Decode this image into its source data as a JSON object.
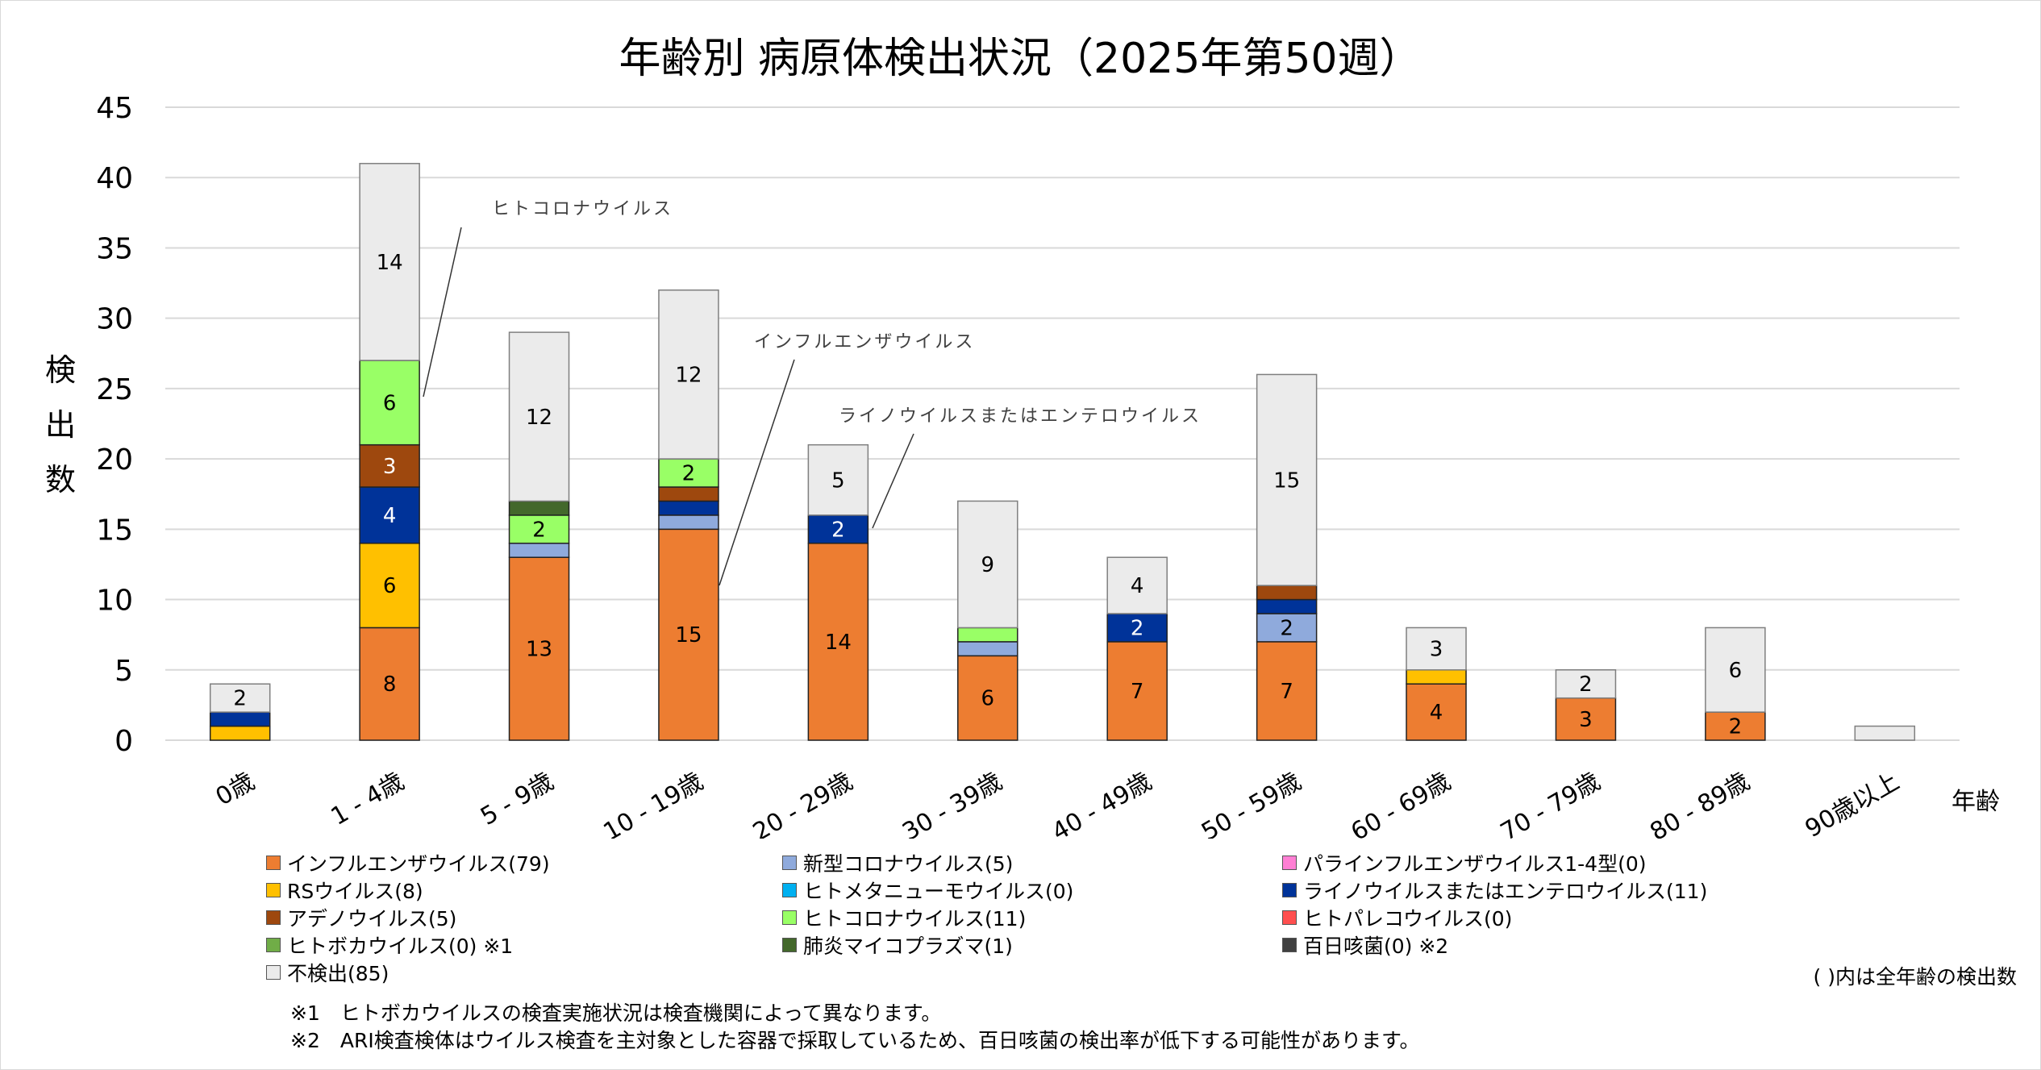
{
  "chart_data": {
    "type": "bar",
    "stacked": true,
    "title": "年齢別 病原体検出状況（2025年第50週）",
    "xlabel": "年齢",
    "ylabel": "検出数",
    "ylim": [
      0,
      45
    ],
    "yticks": [
      0,
      5,
      10,
      15,
      20,
      25,
      30,
      35,
      40,
      45
    ],
    "grid": true,
    "legend_position": "bottom",
    "categories": [
      "0歳",
      "1 - 4歳",
      "5 - 9歳",
      "10 - 19歳",
      "20 - 29歳",
      "30 - 39歳",
      "40 - 49歳",
      "50 - 59歳",
      "60 - 69歳",
      "70 - 79歳",
      "80 - 89歳",
      "90歳以上"
    ],
    "series": [
      {
        "name": "インフルエンザウイルス",
        "total": 79,
        "color": "#ED7D31",
        "values": [
          0,
          8,
          13,
          15,
          14,
          6,
          7,
          7,
          4,
          3,
          2,
          0
        ]
      },
      {
        "name": "RSウイルス",
        "total": 8,
        "color": "#FFC000",
        "values": [
          1,
          6,
          0,
          0,
          0,
          0,
          0,
          0,
          1,
          0,
          0,
          0
        ]
      },
      {
        "name": "新型コロナウイルス",
        "total": 5,
        "color": "#8FAADC",
        "values": [
          0,
          0,
          1,
          1,
          0,
          1,
          0,
          2,
          0,
          0,
          0,
          0
        ]
      },
      {
        "name": "ヒトメタニューモウイルス",
        "total": 0,
        "color": "#00B0F0",
        "values": [
          0,
          0,
          0,
          0,
          0,
          0,
          0,
          0,
          0,
          0,
          0,
          0
        ]
      },
      {
        "name": "パラインフルエンザウイルス1-4型",
        "total": 0,
        "color": "#FF7FD4",
        "values": [
          0,
          0,
          0,
          0,
          0,
          0,
          0,
          0,
          0,
          0,
          0,
          0
        ]
      },
      {
        "name": "ライノウイルスまたはエンテロウイルス",
        "total": 11,
        "color": "#003399",
        "values": [
          1,
          4,
          0,
          1,
          2,
          0,
          2,
          1,
          0,
          0,
          0,
          0
        ]
      },
      {
        "name": "アデノウイルス",
        "total": 5,
        "color": "#9E480E",
        "values": [
          0,
          3,
          0,
          1,
          0,
          0,
          0,
          1,
          0,
          0,
          0,
          0
        ]
      },
      {
        "name": "ヒトコロナウイルス",
        "total": 11,
        "color": "#99FF66",
        "values": [
          0,
          6,
          2,
          2,
          0,
          1,
          0,
          0,
          0,
          0,
          0,
          0
        ]
      },
      {
        "name": "ヒトパレコウイルス",
        "total": 0,
        "color": "#FF4F4F",
        "values": [
          0,
          0,
          0,
          0,
          0,
          0,
          0,
          0,
          0,
          0,
          0,
          0
        ]
      },
      {
        "name": "ヒトボカウイルス",
        "total": 0,
        "color": "#70AD47",
        "note": "※1",
        "values": [
          0,
          0,
          0,
          0,
          0,
          0,
          0,
          0,
          0,
          0,
          0,
          0
        ]
      },
      {
        "name": "肺炎マイコプラズマ",
        "total": 1,
        "color": "#43682B",
        "values": [
          0,
          0,
          1,
          0,
          0,
          0,
          0,
          0,
          0,
          0,
          0,
          0
        ]
      },
      {
        "name": "百日咳菌",
        "total": 0,
        "color": "#404040",
        "note": "※2",
        "values": [
          0,
          0,
          0,
          0,
          0,
          0,
          0,
          0,
          0,
          0,
          0,
          0
        ]
      },
      {
        "name": "不検出",
        "total": 85,
        "color": "#EBEBEB",
        "values": [
          2,
          14,
          12,
          12,
          5,
          9,
          4,
          15,
          3,
          2,
          6,
          1
        ]
      }
    ],
    "data_labels_shown_min": 2,
    "annotations": [
      {
        "text": "ヒトコロナウイルス",
        "points_to": {
          "category": "1 - 4歳",
          "series": "ヒトコロナウイルス"
        }
      },
      {
        "text": "インフルエンザウイルス",
        "points_to": {
          "category": "10 - 19歳",
          "series": "インフルエンザウイルス"
        }
      },
      {
        "text": "ライノウイルスまたはエンテロウイルス",
        "points_to": {
          "category": "20 - 29歳",
          "series": "ライノウイルスまたはエンテロウイルス"
        }
      }
    ]
  },
  "legend": {
    "items": [
      {
        "label": "インフルエンザウイルス(79)",
        "color": "#ED7D31"
      },
      {
        "label": "新型コロナウイルス(5)",
        "color": "#8FAADC"
      },
      {
        "label": "パラインフルエンザウイルス1-4型(0)",
        "color": "#FF7FD4"
      },
      {
        "label": "RSウイルス(8)",
        "color": "#FFC000"
      },
      {
        "label": "ヒトメタニューモウイルス(0)",
        "color": "#00B0F0"
      },
      {
        "label": "ライノウイルスまたはエンテロウイルス(11)",
        "color": "#003399"
      },
      {
        "label": "アデノウイルス(5)",
        "color": "#9E480E"
      },
      {
        "label": "ヒトコロナウイルス(11)",
        "color": "#99FF66"
      },
      {
        "label": "ヒトパレコウイルス(0)",
        "color": "#FF4F4F"
      },
      {
        "label": "ヒトボカウイルス(0)  ※1",
        "color": "#70AD47"
      },
      {
        "label": "肺炎マイコプラズマ(1)",
        "color": "#43682B"
      },
      {
        "label": "百日咳菌(0)  ※2",
        "color": "#404040"
      },
      {
        "label": "不検出(85)",
        "color": "#EBEBEB"
      }
    ],
    "note": "( )内は全年齢の検出数"
  },
  "footnotes": [
    "※1　ヒトボカウイルスの検査実施状況は検査機関によって異なります。",
    "※2　ARI検査検体はウイルス検査を主対象とした容器で採取しているため、百日咳菌の検出率が低下する可能性があります。"
  ]
}
